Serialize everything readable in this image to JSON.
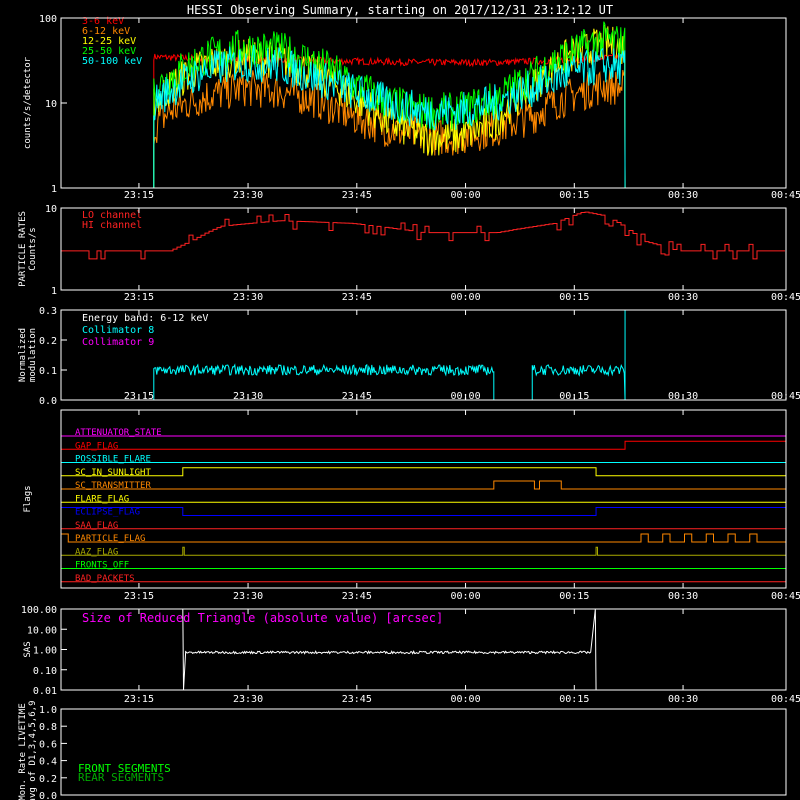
{
  "title": "HESSI Observing Summary, starting on 2017/12/31 23:12:12 UT",
  "colors": {
    "background": "#000000",
    "frame": "#ffffff",
    "band_3_6": "#ff0000",
    "band_6_12": "#ff8800",
    "band_12_25": "#ffff00",
    "band_25_50": "#00ff00",
    "band_50_100": "#00ffff",
    "lo_channel": "#ff2222",
    "hi_channel": "#ff2222",
    "collimator_8": "#00ffff",
    "collimator_9": "#ff00ff",
    "sas_label": "#ff00ff",
    "sas_trace": "#ffffff",
    "front_segments": "#00ff00",
    "rear_segments": "#00aa00"
  },
  "time_ticks": [
    "23:15",
    "23:30",
    "23:45",
    "00:00",
    "00:15",
    "00:30",
    "00:45"
  ],
  "chart_data": [
    {
      "id": "count-rates",
      "type": "line",
      "ylabel": "counts/s/detector",
      "yscale": "log",
      "ylim": [
        1,
        100
      ],
      "yticks": [
        "1",
        "10",
        "100"
      ],
      "x_unit": "minutes since 23:12:12 UT",
      "xlim": [
        0,
        100
      ],
      "data_start": 12.8,
      "data_end": 77.8,
      "series": [
        {
          "name": "3-6 keV",
          "color": "#ff0000",
          "x": [
            12.8,
            20,
            30,
            40,
            50,
            60,
            70,
            77.8
          ],
          "y": [
            35,
            33,
            32,
            31,
            30,
            30,
            32,
            35
          ]
        },
        {
          "name": "6-12 keV",
          "color": "#ff8800",
          "x": [
            12.8,
            15,
            20,
            25,
            30,
            35,
            40,
            45,
            50,
            55,
            60,
            65,
            70,
            75,
            77.8
          ],
          "y": [
            5,
            8,
            12,
            15,
            14,
            11,
            7,
            5,
            4,
            4,
            5,
            7,
            12,
            16,
            15
          ]
        },
        {
          "name": "12-25 keV",
          "color": "#ffff00",
          "x": [
            12.8,
            15,
            20,
            25,
            30,
            35,
            40,
            45,
            50,
            55,
            60,
            65,
            70,
            75,
            77.8
          ],
          "y": [
            10,
            15,
            28,
            35,
            32,
            22,
            12,
            6,
            4,
            4,
            6,
            15,
            35,
            50,
            45
          ]
        },
        {
          "name": "25-50 keV",
          "color": "#00ff00",
          "x": [
            12.8,
            15,
            20,
            25,
            30,
            35,
            40,
            45,
            50,
            55,
            60,
            65,
            70,
            75,
            77.8
          ],
          "y": [
            14,
            20,
            35,
            45,
            42,
            30,
            17,
            10,
            8,
            8,
            11,
            20,
            38,
            55,
            50
          ]
        },
        {
          "name": "50-100 keV",
          "color": "#00ffff",
          "x": [
            12.8,
            15,
            20,
            25,
            30,
            35,
            40,
            45,
            50,
            55,
            60,
            65,
            70,
            75,
            77.8
          ],
          "y": [
            10,
            14,
            24,
            30,
            28,
            20,
            14,
            10,
            8,
            8,
            10,
            15,
            22,
            28,
            26
          ]
        }
      ]
    },
    {
      "id": "particle-rates",
      "type": "line",
      "ylabel": [
        "PARTICLE RATES",
        "Counts/s"
      ],
      "yscale": "log",
      "ylim": [
        1,
        10
      ],
      "yticks": [
        "1",
        "10"
      ],
      "xlim": [
        0,
        100
      ],
      "series": [
        {
          "name": "LO channel",
          "color": "#ff2222",
          "x": [
            0,
            10,
            15,
            18,
            22,
            30,
            40,
            50,
            60,
            68,
            72,
            75,
            80,
            85,
            90,
            100
          ],
          "y": [
            3,
            3,
            3,
            4,
            6,
            7,
            6.5,
            5,
            5,
            6.5,
            9,
            8,
            4,
            3,
            3,
            3
          ]
        },
        {
          "name": "HI channel",
          "color": "#ff2222",
          "x": [],
          "y": []
        }
      ]
    },
    {
      "id": "modulation",
      "type": "line",
      "ylabel": [
        "Normalized",
        "modulation"
      ],
      "ylim": [
        0,
        0.3
      ],
      "yticks": [
        "0.0",
        "0.1",
        "0.2",
        "0.3"
      ],
      "xlim": [
        0,
        100
      ],
      "energy_band": "Energy band: 6-12 keV",
      "series": [
        {
          "name": "Collimator 8",
          "color": "#00ffff",
          "segments": [
            [
              12.8,
              59.7
            ],
            [
              65,
              77.8
            ]
          ],
          "y": 0.1
        },
        {
          "name": "Collimator 9",
          "color": "#ff00ff",
          "segments": [
            [
              0,
              100
            ]
          ],
          "y": 0.0
        }
      ]
    },
    {
      "id": "flags",
      "type": "line",
      "ylabel": "Flags",
      "xlim": [
        0,
        100
      ],
      "flags": [
        {
          "name": "ATTENUATOR_STATE",
          "color": "#ff00ff",
          "segments": []
        },
        {
          "name": "GAP_FLAG",
          "color": "#ff0000",
          "segments": [
            [
              77.8,
              100
            ]
          ]
        },
        {
          "name": "POSSIBLE_FLARE",
          "color": "#00ffff",
          "segments": []
        },
        {
          "name": "SC_IN_SUNLIGHT",
          "color": "#ffff00",
          "segments": [
            [
              16.8,
              73.8
            ]
          ]
        },
        {
          "name": "SC_TRANSMITTER",
          "color": "#ff8800",
          "segments": [
            [
              59.7,
              65.3
            ],
            [
              66,
              69
            ]
          ]
        },
        {
          "name": "FLARE_FLAG",
          "color": "#ffff00",
          "segments": []
        },
        {
          "name": "ECLIPSE_FLAG",
          "color": "#0000ff",
          "segments": [
            [
              0,
              16.8
            ],
            [
              73.8,
              100
            ]
          ]
        },
        {
          "name": "SAA_FLAG",
          "color": "#ff2222",
          "segments": []
        },
        {
          "name": "PARTICLE_FLAG",
          "color": "#ff8800",
          "segments": [
            [
              0,
              1
            ],
            [
              80,
              81
            ],
            [
              83,
              84
            ],
            [
              86,
              87
            ],
            [
              89,
              90
            ],
            [
              92,
              93
            ],
            [
              95,
              96
            ]
          ]
        },
        {
          "name": "AAZ_FLAG",
          "color": "#aaaa00",
          "segments": [
            [
              16.8,
              17
            ],
            [
              73.8,
              74
            ]
          ]
        },
        {
          "name": "FRONTS_OFF",
          "color": "#00ff00",
          "segments": []
        },
        {
          "name": "BAD_PACKETS",
          "color": "#ff2222",
          "segments": []
        }
      ]
    },
    {
      "id": "sas",
      "type": "line",
      "ylabel": "SAS",
      "yscale": "log",
      "ylim": [
        0.01,
        100
      ],
      "yticks": [
        "0.01",
        "0.10",
        "1.00",
        "10.00",
        "100.00"
      ],
      "xlim": [
        0,
        100
      ],
      "series": [
        {
          "name": "Size of Reduced Triangle (absolute value) [arcsec]",
          "color": "#ffffff",
          "x": [
            16.8,
            17.2,
            20,
            40,
            60,
            73.2,
            73.8
          ],
          "y": [
            100,
            0.8,
            0.75,
            0.7,
            0.7,
            0.75,
            100
          ]
        }
      ]
    },
    {
      "id": "livetime",
      "type": "line",
      "ylabel": [
        "Mon. Rate LIVETIME",
        "avg of D1,3,4,5,6,9"
      ],
      "ylim": [
        0,
        1
      ],
      "yticks": [
        "0.0",
        "0.2",
        "0.4",
        "0.6",
        "0.8",
        "1.0"
      ],
      "xlim": [
        0,
        100
      ],
      "series": [
        {
          "name": "FRONT SEGMENTS",
          "color": "#00ff00",
          "x": [],
          "y": []
        },
        {
          "name": "REAR SEGMENTS",
          "color": "#00aa00",
          "x": [],
          "y": []
        }
      ]
    }
  ]
}
